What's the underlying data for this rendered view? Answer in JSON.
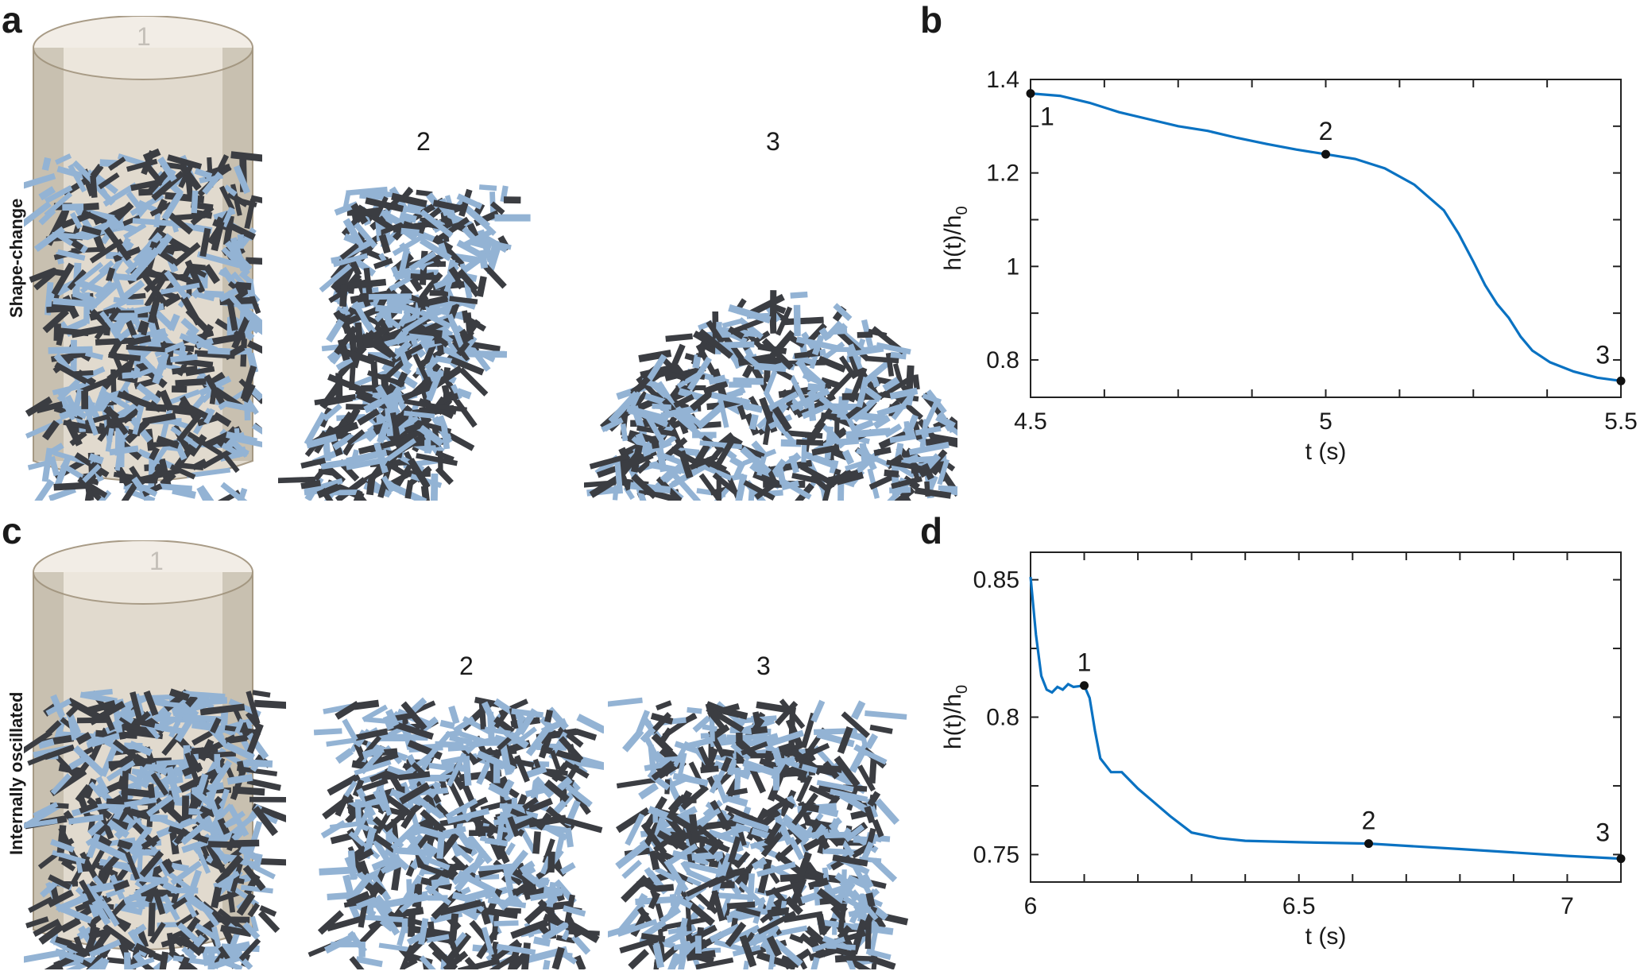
{
  "figure": {
    "panel_letters": {
      "a": "a",
      "b": "b",
      "c": "c",
      "d": "d"
    },
    "row_labels": {
      "top": "Shape-change",
      "bottom": "Internally oscillated"
    },
    "stage_labels_top": [
      "1",
      "2",
      "3"
    ],
    "stage_labels_bottom": [
      "1",
      "2",
      "3"
    ],
    "colors": {
      "rod_light": "#93b3d4",
      "rod_dark": "#3b3d42",
      "cylinder": "#c8bba6",
      "curve": "#0a72c2",
      "marker": "#111111"
    }
  },
  "chart_data": [
    {
      "id": "b",
      "type": "line",
      "xlabel": "t (s)",
      "ylabel_main": "h(t)/h",
      "ylabel_sub": "0",
      "xlim": [
        4.5,
        5.5
      ],
      "ylim": [
        0.72,
        1.4
      ],
      "xticks": [
        4.5,
        4.625,
        4.75,
        4.875,
        5.0,
        5.125,
        5.25,
        5.375,
        5.5
      ],
      "xtick_labels": [
        "4.5",
        "",
        "",
        "",
        "5",
        "",
        "",
        "",
        "5.5"
      ],
      "yticks": [
        0.8,
        0.9,
        1.0,
        1.1,
        1.2,
        1.3,
        1.4
      ],
      "ytick_labels": [
        "0.8",
        "",
        "1",
        "",
        "1.2",
        "",
        "1.4"
      ],
      "series": [
        {
          "x": [
            4.5,
            4.55,
            4.6,
            4.65,
            4.7,
            4.75,
            4.8,
            4.85,
            4.9,
            4.95,
            5.0,
            5.05,
            5.1,
            5.15,
            5.2,
            5.225,
            5.25,
            5.27,
            5.29,
            5.31,
            5.33,
            5.35,
            5.38,
            5.42,
            5.46,
            5.5
          ],
          "y": [
            1.37,
            1.365,
            1.35,
            1.33,
            1.315,
            1.3,
            1.29,
            1.275,
            1.262,
            1.25,
            1.24,
            1.23,
            1.21,
            1.175,
            1.12,
            1.07,
            1.01,
            0.96,
            0.92,
            0.89,
            0.85,
            0.82,
            0.795,
            0.775,
            0.762,
            0.755
          ]
        }
      ],
      "markers": [
        {
          "label": "1",
          "x": 4.5,
          "y": 1.37
        },
        {
          "label": "2",
          "x": 5.0,
          "y": 1.24
        },
        {
          "label": "3",
          "x": 5.5,
          "y": 0.755
        }
      ]
    },
    {
      "id": "d",
      "type": "line",
      "xlabel": "t (s)",
      "ylabel_main": "h(t)/h",
      "ylabel_sub": "0",
      "xlim": [
        6.0,
        7.1
      ],
      "ylim": [
        0.74,
        0.86
      ],
      "xticks": [
        6.0,
        6.1,
        6.2,
        6.3,
        6.4,
        6.5,
        6.6,
        6.7,
        6.8,
        6.9,
        7.0,
        7.1
      ],
      "xtick_labels": [
        "6",
        "",
        "",
        "",
        "",
        "6.5",
        "",
        "",
        "",
        "",
        "7",
        ""
      ],
      "yticks": [
        0.75,
        0.775,
        0.8,
        0.825,
        0.85
      ],
      "ytick_labels": [
        "0.75",
        "",
        "0.8",
        "",
        "0.85"
      ],
      "series": [
        {
          "x": [
            6.0,
            6.01,
            6.02,
            6.03,
            6.04,
            6.05,
            6.06,
            6.07,
            6.08,
            6.1,
            6.11,
            6.12,
            6.13,
            6.15,
            6.17,
            6.2,
            6.23,
            6.26,
            6.3,
            6.35,
            6.4,
            6.5,
            6.63,
            6.8,
            7.0,
            7.1
          ],
          "y": [
            0.851,
            0.83,
            0.815,
            0.81,
            0.809,
            0.811,
            0.81,
            0.812,
            0.811,
            0.8115,
            0.807,
            0.795,
            0.785,
            0.78,
            0.78,
            0.774,
            0.769,
            0.764,
            0.758,
            0.756,
            0.755,
            0.7545,
            0.754,
            0.752,
            0.7495,
            0.7485
          ]
        }
      ],
      "markers": [
        {
          "label": "1",
          "x": 6.1,
          "y": 0.8115
        },
        {
          "label": "2",
          "x": 6.63,
          "y": 0.754
        },
        {
          "label": "3",
          "x": 7.1,
          "y": 0.7485
        }
      ]
    }
  ]
}
